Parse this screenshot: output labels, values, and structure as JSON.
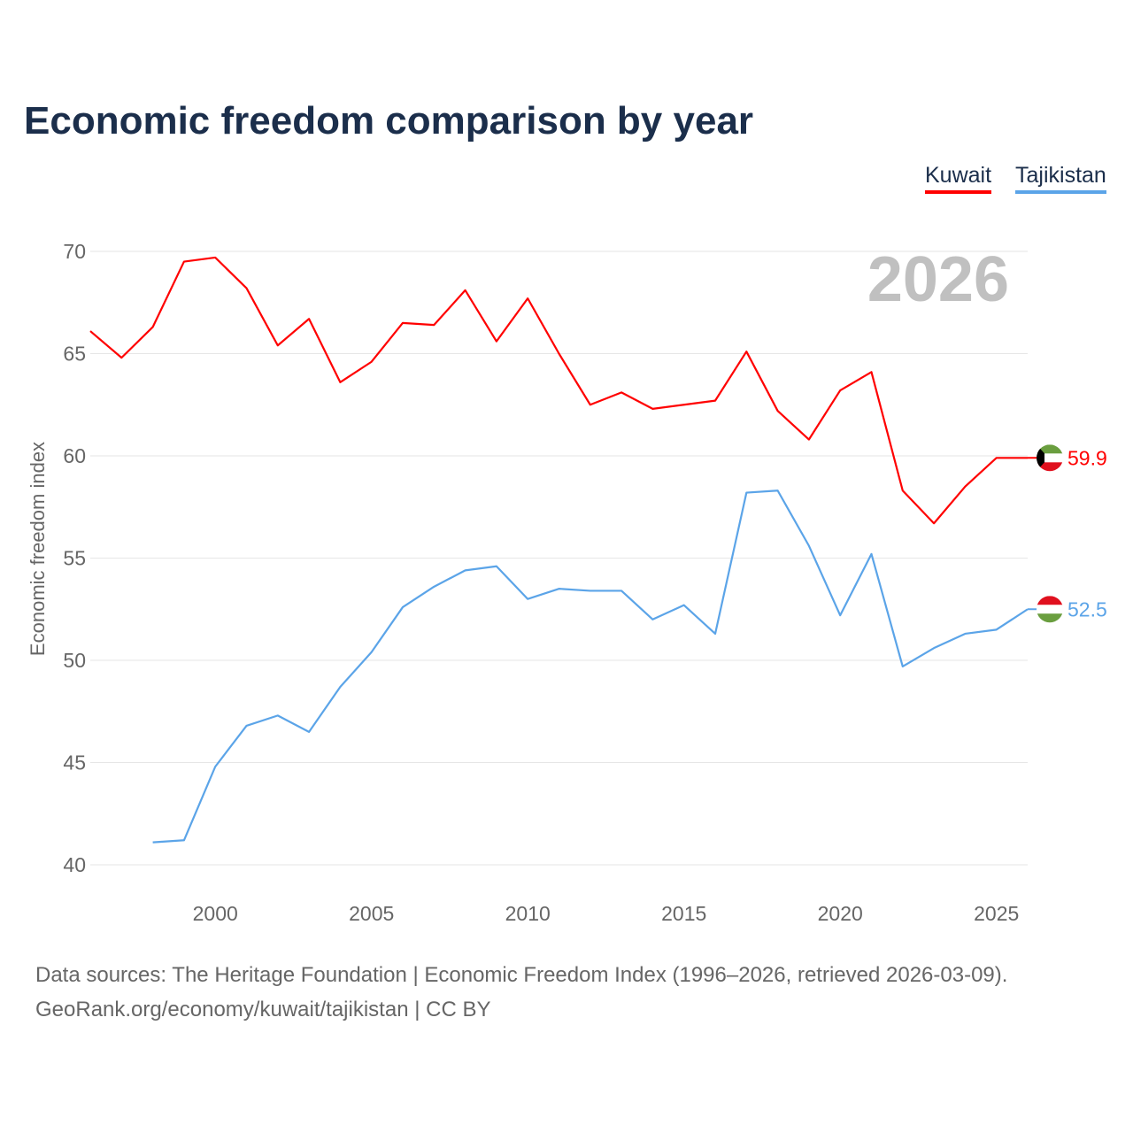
{
  "chart_data": {
    "type": "line",
    "title": "Economic freedom comparison by year",
    "ylabel": "Economic freedom index",
    "xlabel": "",
    "xlim": [
      1996,
      2026
    ],
    "ylim": [
      40,
      70
    ],
    "yticks": [
      40,
      45,
      50,
      55,
      60,
      65,
      70
    ],
    "xticks": [
      2000,
      2005,
      2010,
      2015,
      2020,
      2025
    ],
    "grid": true,
    "legend_position": "top-right",
    "year_label": "2026",
    "series": [
      {
        "name": "Kuwait",
        "color": "#ff0000",
        "end_label": "59.9",
        "x": [
          1996,
          1997,
          1998,
          1999,
          2000,
          2001,
          2002,
          2003,
          2004,
          2005,
          2006,
          2007,
          2008,
          2009,
          2010,
          2011,
          2012,
          2013,
          2014,
          2015,
          2016,
          2017,
          2018,
          2019,
          2020,
          2021,
          2022,
          2023,
          2024,
          2025,
          2026
        ],
        "values": [
          66.1,
          64.8,
          66.3,
          69.5,
          69.7,
          68.2,
          65.4,
          66.7,
          63.6,
          64.6,
          66.5,
          66.4,
          68.1,
          65.6,
          67.7,
          65.0,
          62.5,
          63.1,
          62.3,
          62.5,
          62.7,
          65.1,
          62.2,
          60.8,
          63.2,
          64.1,
          58.3,
          56.7,
          58.5,
          59.9,
          59.9
        ]
      },
      {
        "name": "Tajikistan",
        "color": "#5ba4e8",
        "end_label": "52.5",
        "x": [
          1998,
          1999,
          2000,
          2001,
          2002,
          2003,
          2004,
          2005,
          2006,
          2007,
          2008,
          2009,
          2010,
          2011,
          2012,
          2013,
          2014,
          2015,
          2016,
          2017,
          2018,
          2019,
          2020,
          2021,
          2022,
          2023,
          2024,
          2025,
          2026
        ],
        "values": [
          41.1,
          41.2,
          44.8,
          46.8,
          47.3,
          46.5,
          48.7,
          50.4,
          52.6,
          53.6,
          54.4,
          54.6,
          53.0,
          53.5,
          53.4,
          53.4,
          52.0,
          52.7,
          51.3,
          58.2,
          58.3,
          55.6,
          52.2,
          55.2,
          49.7,
          50.6,
          51.3,
          51.5,
          52.5
        ]
      }
    ]
  },
  "footer": {
    "line1": "Data sources: The Heritage Foundation | Economic Freedom Index (1996–2026, retrieved 2026-03-09).",
    "line2": "GeoRank.org/economy/kuwait/tajikistan | CC BY"
  }
}
